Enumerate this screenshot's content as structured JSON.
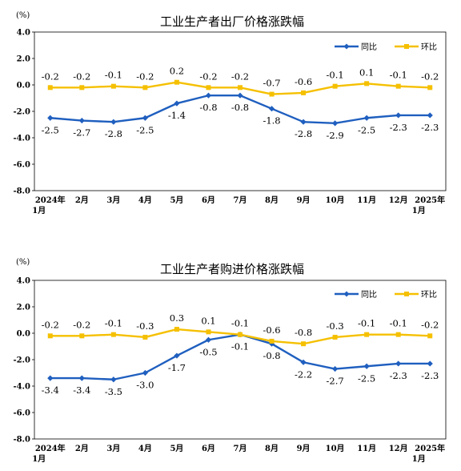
{
  "chart_data": [
    {
      "type": "line",
      "title": "工业生产者出厂价格涨跌幅",
      "unit_label": "(%)",
      "categories": [
        "2024年\n1月",
        "2月",
        "3月",
        "4月",
        "5月",
        "6月",
        "7月",
        "8月",
        "9月",
        "10月",
        "11月",
        "12月",
        "2025年\n1月"
      ],
      "ylim": [
        -8.0,
        4.0
      ],
      "yticks": [
        "4.0",
        "2.0",
        "0.0",
        "-2.0",
        "-4.0",
        "-6.0",
        "-8.0"
      ],
      "series": [
        {
          "name": "同比",
          "color": "#1f5fbf",
          "values": [
            -2.5,
            -2.7,
            -2.8,
            -2.5,
            -1.4,
            -0.8,
            -0.8,
            -1.8,
            -2.8,
            -2.9,
            -2.5,
            -2.3,
            -2.3
          ],
          "labels": [
            "-2.5",
            "-2.7",
            "-2.8",
            "-2.5",
            "-1.4",
            "-0.8",
            "-0.8",
            "-1.8",
            "-2.8",
            "-2.9",
            "-2.5",
            "-2.3",
            "-2.3"
          ]
        },
        {
          "name": "环比",
          "color": "#f5c000",
          "values": [
            -0.2,
            -0.2,
            -0.1,
            -0.2,
            0.2,
            -0.2,
            -0.2,
            -0.7,
            -0.6,
            -0.1,
            0.1,
            -0.1,
            -0.2
          ],
          "labels": [
            "-0.2",
            "-0.2",
            "-0.1",
            "-0.2",
            "0.2",
            "-0.2",
            "-0.2",
            "-0.7",
            "-0.6",
            "-0.1",
            "0.1",
            "-0.1",
            "-0.2"
          ]
        }
      ],
      "legend": "top-right",
      "grid": false
    },
    {
      "type": "line",
      "title": "工业生产者购进价格涨跌幅",
      "unit_label": "(%)",
      "categories": [
        "2024年\n1月",
        "2月",
        "3月",
        "4月",
        "5月",
        "6月",
        "7月",
        "8月",
        "9月",
        "10月",
        "11月",
        "12月",
        "2025年\n1月"
      ],
      "ylim": [
        -8.0,
        4.0
      ],
      "yticks": [
        "4.0",
        "2.0",
        "0.0",
        "-2.0",
        "-4.0",
        "-6.0",
        "-8.0"
      ],
      "series": [
        {
          "name": "同比",
          "color": "#1f5fbf",
          "values": [
            -3.4,
            -3.4,
            -3.5,
            -3.0,
            -1.7,
            -0.5,
            -0.1,
            -0.8,
            -2.2,
            -2.7,
            -2.5,
            -2.3,
            -2.3
          ],
          "labels": [
            "-3.4",
            "-3.4",
            "-3.5",
            "-3.0",
            "-1.7",
            "-0.5",
            "-0.1",
            "-0.8",
            "-2.2",
            "-2.7",
            "-2.5",
            "-2.3",
            "-2.3"
          ]
        },
        {
          "name": "环比",
          "color": "#f5c000",
          "values": [
            -0.2,
            -0.2,
            -0.1,
            -0.3,
            0.3,
            0.1,
            -0.1,
            -0.6,
            -0.8,
            -0.3,
            -0.1,
            -0.1,
            -0.2
          ],
          "labels": [
            "-0.2",
            "-0.2",
            "-0.1",
            "-0.3",
            "0.3",
            "0.1",
            "-0.1",
            "-0.6",
            "-0.8",
            "-0.3",
            "-0.1",
            "-0.1",
            "-0.2"
          ]
        }
      ],
      "legend": "top-right",
      "grid": false
    }
  ]
}
